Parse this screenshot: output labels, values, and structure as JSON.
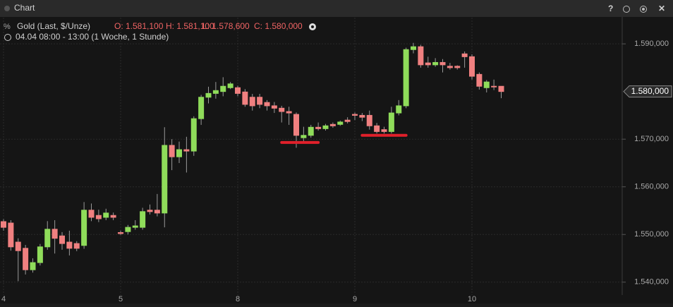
{
  "window_title": "Chart",
  "chart_data": {
    "type": "candlestick",
    "subtitle": "04.04 08:00 - 13:00 (1 Woche, 1 Stunde)",
    "ohlc_labels": [
      "O: 1.581,100",
      "H: 1.581,100",
      "L: 1.578,600",
      "C: 1.580,000"
    ],
    "last_price": {
      "value": 1580,
      "label": "1.580,000"
    },
    "categories": [
      "4",
      null,
      null,
      null,
      null,
      null,
      null,
      null,
      null,
      null,
      null,
      null,
      null,
      null,
      null,
      null,
      "5",
      null,
      null,
      null,
      null,
      null,
      null,
      null,
      null,
      null,
      null,
      null,
      null,
      null,
      null,
      null,
      "8",
      null,
      null,
      null,
      null,
      null,
      null,
      null,
      null,
      null,
      null,
      null,
      null,
      null,
      null,
      null,
      "9",
      null,
      null,
      null,
      null,
      null,
      null,
      null,
      null,
      null,
      null,
      null,
      null,
      null,
      null,
      null,
      "10",
      null,
      null,
      null,
      null,
      null
    ],
    "series": [
      {
        "name": "Gold (Last, $/Unze)",
        "up_color": "#8fdc5a",
        "down_color": "#f08080",
        "open": [
          1552.7,
          1552.4,
          1548.4,
          1547.1,
          1542.6,
          1544.1,
          1547.4,
          1551.1,
          1549.7,
          1548.4,
          1548.1,
          1547.7,
          1555.1,
          1554.0,
          1553.6,
          1554.0,
          1550.4,
          1550.6,
          1551.5,
          1551.5,
          1555.1,
          1555.1,
          1554.5,
          1568.7,
          1566.3,
          1567.8,
          1567.5,
          1574.3,
          1578.8,
          1579.6,
          1580.0,
          1580.8,
          1580.8,
          1579.9,
          1578.8,
          1578.8,
          1577.7,
          1577.0,
          1576.5,
          1575.8,
          1575.2,
          1570.3,
          1570.8,
          1572.5,
          1572.2,
          1573.1,
          1573.1,
          1574.0,
          1575.2,
          1575.0,
          1575.0,
          1572.8,
          1572.0,
          1571.6,
          1575.5,
          1577.0,
          1588.8,
          1589.4,
          1586.0,
          1585.6,
          1586.1,
          1585.3,
          1585.3,
          1587.9,
          1587.3,
          1583.6,
          1580.8,
          1581.1,
          1581.1
        ],
        "high": [
          1553.2,
          1553.0,
          1549.2,
          1547.8,
          1545.0,
          1548.0,
          1552.8,
          1553.0,
          1550.5,
          1550.8,
          1548.6,
          1556.8,
          1556.5,
          1555.2,
          1555.4,
          1554.6,
          1550.8,
          1552.0,
          1553.0,
          1555.6,
          1556.3,
          1558.5,
          1572.5,
          1570.0,
          1569.5,
          1570.5,
          1574.8,
          1579.3,
          1581.0,
          1582.0,
          1583.0,
          1582.0,
          1581.2,
          1580.5,
          1579.5,
          1579.5,
          1578.2,
          1577.8,
          1577.0,
          1576.8,
          1575.6,
          1572.6,
          1573.0,
          1573.5,
          1573.2,
          1573.5,
          1573.9,
          1574.6,
          1575.6,
          1575.5,
          1576.0,
          1573.4,
          1572.6,
          1576.8,
          1578.2,
          1589.2,
          1590.2,
          1589.8,
          1587.3,
          1587.0,
          1586.8,
          1586.0,
          1585.5,
          1588.4,
          1587.8,
          1584.0,
          1582.4,
          1582.5,
          1581.1
        ],
        "low": [
          1550.8,
          1546.6,
          1540.2,
          1541.6,
          1542.0,
          1543.5,
          1546.8,
          1546.0,
          1546.8,
          1545.6,
          1546.5,
          1547.0,
          1552.8,
          1552.6,
          1553.0,
          1553.0,
          1549.9,
          1550.0,
          1551.0,
          1551.0,
          1554.2,
          1553.8,
          1551.5,
          1563.5,
          1565.0,
          1563.0,
          1566.5,
          1573.0,
          1577.5,
          1578.5,
          1579.0,
          1580.5,
          1579.0,
          1576.8,
          1576.0,
          1576.5,
          1576.0,
          1575.5,
          1573.5,
          1573.0,
          1568.2,
          1569.5,
          1570.3,
          1571.8,
          1571.8,
          1572.4,
          1572.8,
          1573.3,
          1574.0,
          1573.8,
          1572.0,
          1571.2,
          1571.2,
          1571.2,
          1575.0,
          1576.5,
          1588.0,
          1585.0,
          1585.0,
          1585.2,
          1584.0,
          1584.6,
          1584.6,
          1585.0,
          1582.5,
          1580.4,
          1579.8,
          1580.3,
          1578.6
        ],
        "close": [
          1551.5,
          1547.4,
          1546.6,
          1542.6,
          1544.1,
          1547.4,
          1551.1,
          1549.2,
          1548.1,
          1547.1,
          1547.1,
          1555.1,
          1553.6,
          1553.3,
          1554.5,
          1553.6,
          1550.2,
          1551.5,
          1551.8,
          1554.8,
          1554.8,
          1554.5,
          1568.7,
          1566.3,
          1567.8,
          1567.5,
          1574.3,
          1578.8,
          1579.6,
          1580.2,
          1581.1,
          1581.6,
          1579.6,
          1577.3,
          1577.0,
          1577.3,
          1577.0,
          1576.5,
          1575.8,
          1575.5,
          1570.8,
          1570.8,
          1572.5,
          1572.2,
          1572.8,
          1572.8,
          1573.6,
          1573.7,
          1575.0,
          1574.6,
          1572.8,
          1571.6,
          1571.6,
          1575.5,
          1577.0,
          1588.8,
          1589.4,
          1585.6,
          1585.6,
          1586.1,
          1585.6,
          1585.0,
          1585.0,
          1587.3,
          1583.2,
          1581.1,
          1582.0,
          1581.0,
          1580.0
        ]
      }
    ],
    "support_lines": [
      {
        "value": 1569.3,
        "start": 38,
        "end": 43,
        "color": "#e0202a"
      },
      {
        "value": 1570.8,
        "start": 49,
        "end": 55,
        "color": "#e0202a"
      }
    ],
    "ylim": [
      1537.3,
      1595.5
    ],
    "yticks": [
      {
        "value": 1540,
        "label": "1.540,000"
      },
      {
        "value": 1550,
        "label": "1.550,000"
      },
      {
        "value": 1560,
        "label": "1.560,000"
      },
      {
        "value": 1570,
        "label": "1.570,000"
      },
      {
        "value": 1590,
        "label": "1.590,000"
      }
    ],
    "grid": true
  }
}
